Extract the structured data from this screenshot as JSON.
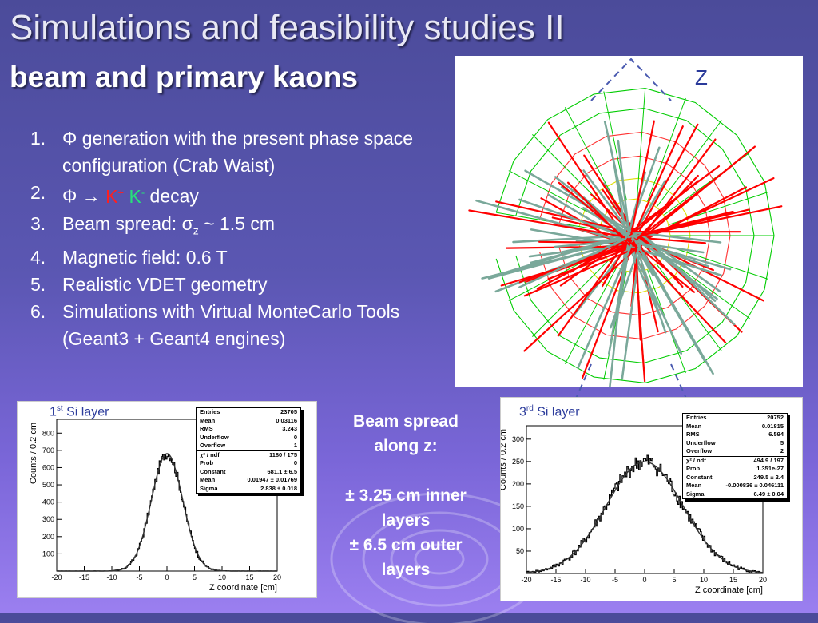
{
  "slide": {
    "title": "Simulations and feasibility studies II",
    "subtitle": "beam and primary kaons"
  },
  "steps": [
    {
      "num": "1.",
      "text": "Φ generation with the present phase space configuration (Crab Waist)"
    },
    {
      "num": "2.",
      "pre": "Φ → ",
      "kplus": "K",
      "kplus_sup": "+",
      "kminus": "K",
      "kminus_sup": "-",
      "post": " decay"
    },
    {
      "num": "3.",
      "pre": "Beam  spread: σ",
      "sub": "z",
      "post": " ~ 1.5 cm"
    },
    {
      "num": "4.",
      "text": "Magnetic field: 0.6 T"
    },
    {
      "num": "5.",
      "text": "Realistic VDET geometry"
    },
    {
      "num": "6.",
      "text": "Simulations with Virtual MonteCarlo Tools (Geant3 + Geant4 engines)"
    }
  ],
  "event_display": {
    "axis_label": "Z",
    "colors": {
      "tracks_red": "#ff0000",
      "tracks_grey": "#7aa89a",
      "detector": "#00cc00",
      "axis": "#4a5ab0"
    }
  },
  "beam_spread": {
    "line1": "Beam spread",
    "line2": "along z:",
    "line3": "± 3.25 cm inner",
    "line4": "layers",
    "line5": "± 6.5 cm outer",
    "line6": "layers"
  },
  "layer1": {
    "label_num": "1",
    "label_sup": "st",
    "label_text": " Si layer",
    "stats": [
      [
        "Entries",
        "23705"
      ],
      [
        "Mean",
        "0.03116"
      ],
      [
        "RMS",
        "3.243"
      ],
      [
        "Underflow",
        "0"
      ],
      [
        "Overflow",
        "1"
      ],
      [
        "χ² / ndf",
        "1180 / 175"
      ],
      [
        "Prob",
        "0"
      ],
      [
        "Constant",
        "681.1 ± 6.5"
      ],
      [
        "Mean",
        "0.01947 ± 0.01769"
      ],
      [
        "Sigma",
        "2.838 ± 0.018"
      ]
    ]
  },
  "layer3": {
    "label_num": "3",
    "label_sup": "rd",
    "label_text": " Si layer",
    "stats": [
      [
        "Entries",
        "20752"
      ],
      [
        "Mean",
        "0.01815"
      ],
      [
        "RMS",
        "6.594"
      ],
      [
        "Underflow",
        "5"
      ],
      [
        "Overflow",
        "2"
      ],
      [
        "χ² / ndf",
        "494.9 / 197"
      ],
      [
        "Prob",
        "1.351e-27"
      ],
      [
        "Constant",
        "249.5 ± 2.4"
      ],
      [
        "Mean",
        "-0.000836 ± 0.046111"
      ],
      [
        "Sigma",
        "6.49 ± 0.04"
      ]
    ]
  },
  "chart_data": [
    {
      "type": "bar",
      "title": "",
      "xlabel": "Z coordinate [cm]",
      "ylabel": "Counts / 0.2 cm",
      "xlim": [
        -20,
        20
      ],
      "ylim": [
        0,
        880
      ],
      "xticks": [
        "-20",
        "-15",
        "-10",
        "-5",
        "0",
        "5",
        "10",
        "15",
        "20"
      ],
      "yticks": [
        "100",
        "200",
        "300",
        "400",
        "500",
        "600",
        "700",
        "800"
      ],
      "gauss": {
        "constant": 681.1,
        "mean": 0.01947,
        "sigma": 2.838
      }
    },
    {
      "type": "bar",
      "title": "",
      "xlabel": "Z coordinate [cm]",
      "ylabel": "Counts / 0.2 cm",
      "xlim": [
        -20,
        20
      ],
      "ylim": [
        0,
        330
      ],
      "xticks": [
        "-20",
        "-15",
        "-10",
        "-5",
        "0",
        "5",
        "10",
        "15",
        "20"
      ],
      "yticks": [
        "50",
        "100",
        "150",
        "200",
        "250",
        "300"
      ],
      "gauss": {
        "constant": 249.5,
        "mean": -0.000836,
        "sigma": 6.49
      }
    }
  ]
}
